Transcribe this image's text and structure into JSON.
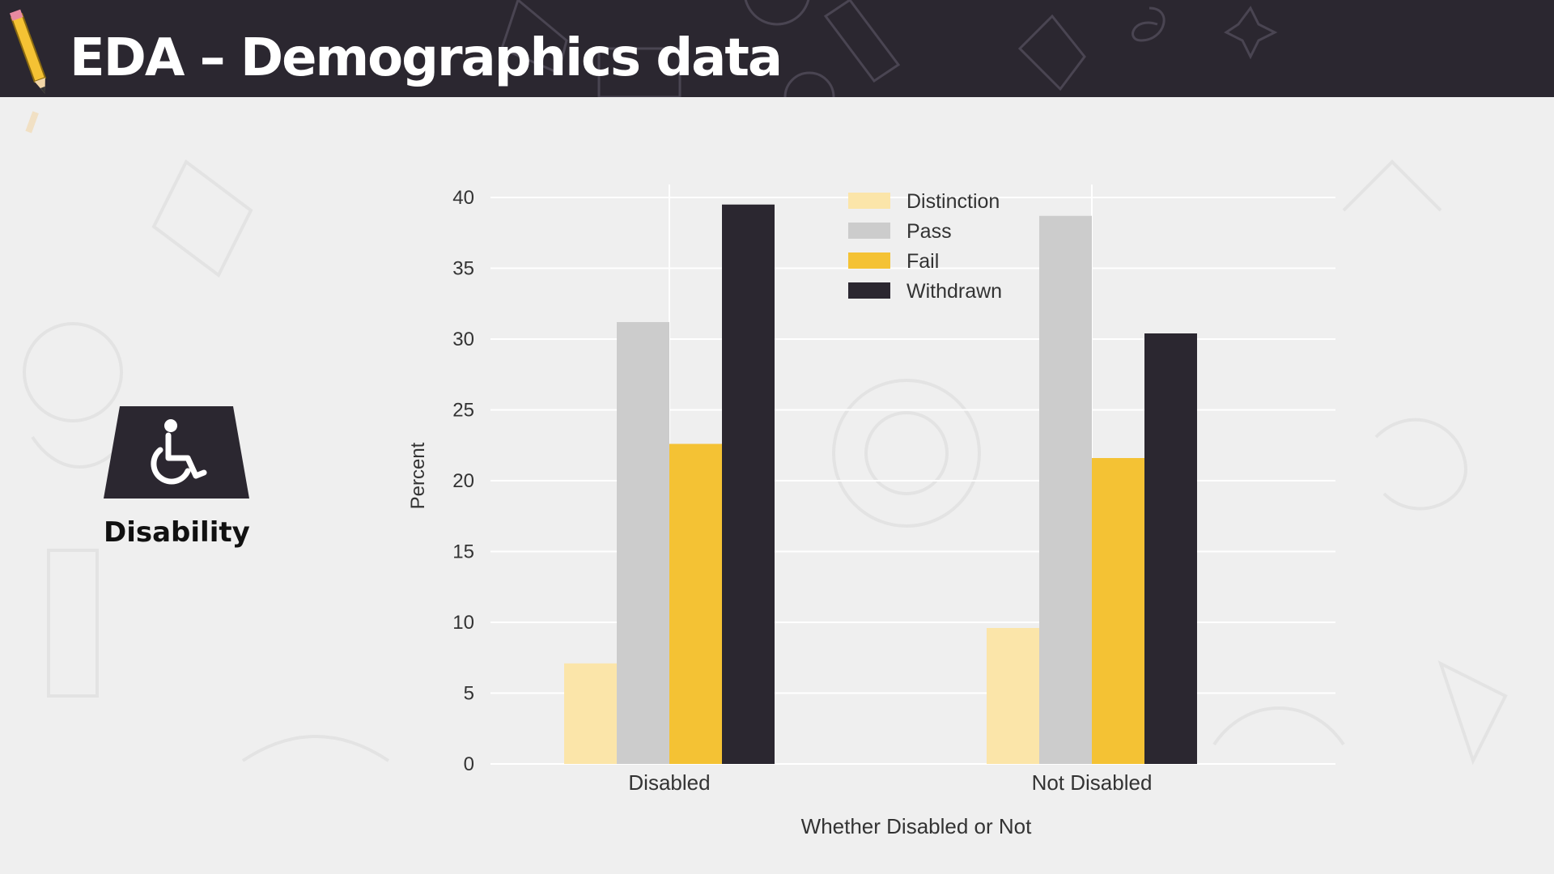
{
  "slide": {
    "title": "EDA – Demographics data",
    "category_label": "Disability"
  },
  "icons": {
    "pencil": "pencil-icon",
    "category": "wheelchair-icon"
  },
  "colors": {
    "header_bg": "#2b2730",
    "page_bg": "#efefef",
    "distinction": "#fbe5a9",
    "pass": "#cccccc",
    "fail": "#f4c234",
    "withdrawn": "#2b2730"
  },
  "chart_data": {
    "type": "bar",
    "categories": [
      "Disabled",
      "Not Disabled"
    ],
    "series": [
      {
        "name": "Distinction",
        "values": [
          7.1,
          9.6
        ],
        "color": "#fbe5a9"
      },
      {
        "name": "Pass",
        "values": [
          31.2,
          38.7
        ],
        "color": "#cccccc"
      },
      {
        "name": "Fail",
        "values": [
          22.6,
          21.6
        ],
        "color": "#f4c234"
      },
      {
        "name": "Withdrawn",
        "values": [
          39.5,
          30.4
        ],
        "color": "#2b2730"
      }
    ],
    "xlabel": "Whether Disabled or Not",
    "ylabel": "Percent",
    "ylim": [
      0,
      40
    ],
    "yticks": [
      0,
      5,
      10,
      15,
      20,
      25,
      30,
      35,
      40
    ],
    "grid": true,
    "legend_position": "top-center"
  }
}
